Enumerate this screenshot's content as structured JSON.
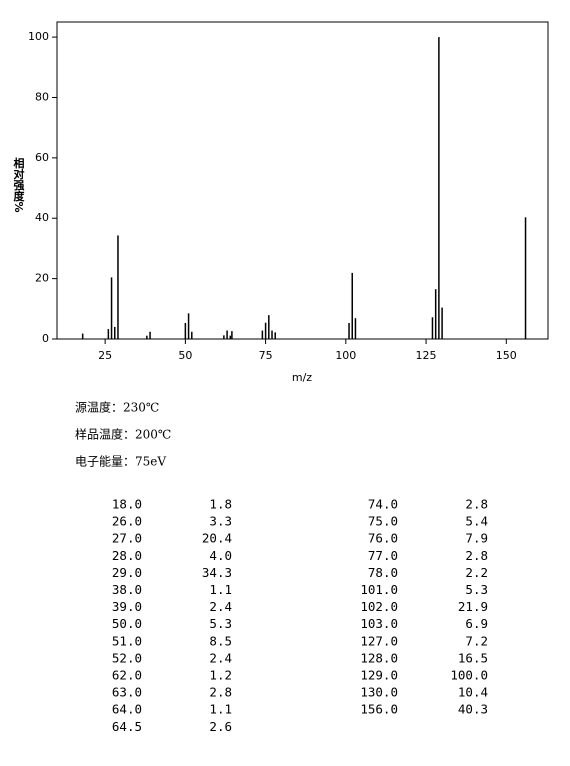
{
  "chart_data": {
    "type": "bar",
    "xlabel": "m/z",
    "ylabel": "相对强度%",
    "x": [
      18,
      26,
      27,
      28,
      29,
      38,
      39,
      50,
      51,
      52,
      62,
      63,
      64,
      64.5,
      74,
      75,
      76,
      77,
      78,
      101,
      102,
      103,
      127,
      128,
      129,
      130,
      156
    ],
    "values": [
      1.8,
      3.3,
      20.4,
      4.0,
      34.3,
      1.1,
      2.4,
      5.3,
      8.5,
      2.4,
      1.2,
      2.8,
      1.1,
      2.6,
      2.8,
      5.4,
      7.9,
      2.8,
      2.2,
      5.3,
      21.9,
      6.9,
      7.2,
      16.5,
      100.0,
      10.4,
      40.3
    ],
    "color": "#000000",
    "xlim": [
      10,
      163
    ],
    "xticks": [
      25,
      50,
      75,
      100,
      125,
      150
    ],
    "ylim": [
      0,
      105
    ],
    "yticks": [
      0,
      20,
      40,
      60,
      80,
      100
    ]
  },
  "conditions": [
    "源温度：230℃",
    "样品温度：200℃",
    "电子能量：75eV"
  ],
  "table": {
    "rows": [
      [
        "18.0",
        "1.8"
      ],
      [
        "26.0",
        "3.3"
      ],
      [
        "27.0",
        "20.4"
      ],
      [
        "28.0",
        "4.0"
      ],
      [
        "29.0",
        "34.3"
      ],
      [
        "38.0",
        "1.1"
      ],
      [
        "39.0",
        "2.4"
      ],
      [
        "50.0",
        "5.3"
      ],
      [
        "51.0",
        "8.5"
      ],
      [
        "52.0",
        "2.4"
      ],
      [
        "62.0",
        "1.2"
      ],
      [
        "63.0",
        "2.8"
      ],
      [
        "64.0",
        "1.1"
      ],
      [
        "64.5",
        "2.6"
      ],
      [
        "74.0",
        "2.8"
      ],
      [
        "75.0",
        "5.4"
      ],
      [
        "76.0",
        "7.9"
      ],
      [
        "77.0",
        "2.8"
      ],
      [
        "78.0",
        "2.2"
      ],
      [
        "101.0",
        "5.3"
      ],
      [
        "102.0",
        "21.9"
      ],
      [
        "103.0",
        "6.9"
      ],
      [
        "127.0",
        "7.2"
      ],
      [
        "128.0",
        "16.5"
      ],
      [
        "129.0",
        "100.0"
      ],
      [
        "130.0",
        "10.4"
      ],
      [
        "156.0",
        "40.3"
      ]
    ]
  }
}
